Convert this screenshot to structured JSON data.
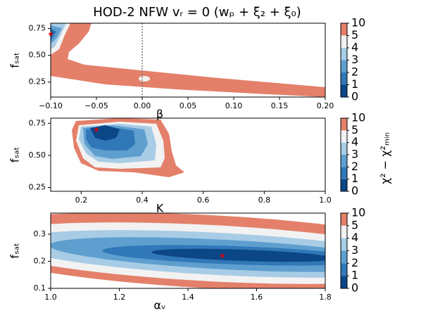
{
  "chart_data": [
    {
      "type": "contour",
      "title": "HOD-2 NFW vᵣ = 0 (wₚ + ξ₂ + ξ₀)",
      "xlabel": "β",
      "ylabel": "fₛₐₜ",
      "xlim": [
        -0.1,
        0.2
      ],
      "ylim": [
        0.11,
        0.8
      ],
      "xticks": [
        {
          "value": -0.1,
          "label": "−0.10"
        },
        {
          "value": -0.05,
          "label": "−0.05"
        },
        {
          "value": 0,
          "label": "0.00"
        },
        0.05,
        {
          "value": 0.1,
          "label": "0.10"
        },
        0.15,
        {
          "value": 0.2,
          "label": "0.20"
        }
      ],
      "yticks": [
        0.25,
        {
          "value": 0.5,
          "label": "0.50"
        },
        0.75
      ],
      "vline": 0,
      "best_fit": {
        "x": -0.1,
        "y": 0.7,
        "color": "#e00000"
      },
      "levels": [
        0,
        1,
        2,
        3,
        4,
        5,
        10
      ],
      "colors": [
        "#0b4687",
        "#3078b8",
        "#5e9fcf",
        "#a8cce5",
        "#f2f2f2",
        "#e4806a"
      ]
    },
    {
      "type": "contour",
      "xlabel": "K",
      "ylabel": "fₛₐₜ",
      "colorbar_label": "χ² − χ²ₘᵢₙ",
      "xlim": [
        0.1,
        1.0
      ],
      "ylim": [
        0.22,
        0.79
      ],
      "xticks": [
        0.2,
        0.4,
        0.6,
        0.8,
        {
          "value": 1.0,
          "label": "1.0"
        }
      ],
      "yticks": [
        0.25,
        {
          "value": 0.5,
          "label": "0.50"
        },
        0.75
      ],
      "best_fit": {
        "x": 0.25,
        "y": 0.7,
        "color": "#e00000"
      },
      "levels": [
        0,
        1,
        2,
        3,
        4,
        5,
        10
      ],
      "colors": [
        "#0b4687",
        "#3078b8",
        "#5e9fcf",
        "#a8cce5",
        "#f2f2f2",
        "#e4806a"
      ]
    },
    {
      "type": "contour",
      "xlabel": "αᵥ",
      "ylabel": "fₛₐₜ",
      "xlim": [
        1.0,
        1.8
      ],
      "ylim": [
        0.1,
        0.378
      ],
      "xticks": [
        {
          "value": 1.0,
          "label": "1.0"
        },
        1.2,
        1.4,
        1.6,
        {
          "value": 1.8,
          "label": "1.8"
        }
      ],
      "yticks": [
        0.1,
        0.2,
        0.3
      ],
      "best_fit": {
        "x": 1.5,
        "y": 0.22,
        "color": "#e00000"
      },
      "levels": [
        0,
        1,
        2,
        3,
        4,
        5,
        10
      ],
      "colors": [
        "#0b4687",
        "#3078b8",
        "#5e9fcf",
        "#a8cce5",
        "#f2f2f2",
        "#e4806a"
      ]
    }
  ]
}
